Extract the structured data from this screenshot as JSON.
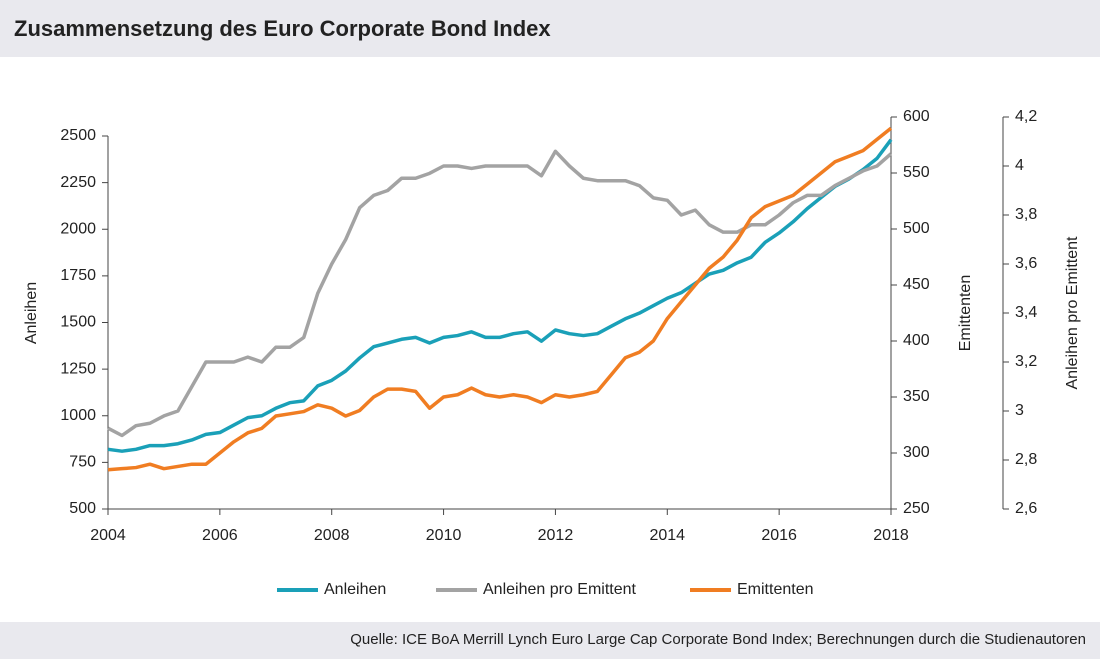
{
  "chart_data": {
    "type": "line",
    "title": "Zusammensetzung des Euro Corporate Bond Index",
    "source": "Quelle: ICE BoA Merrill Lynch Euro Large Cap Corporate Bond Index; Berechnungen durch die Studienautoren",
    "ylabel": "Anleihen",
    "y2label": "Emittenten",
    "y3label": "Anleihen pro Emittent",
    "x": [
      2004,
      2004.25,
      2004.5,
      2004.75,
      2005,
      2005.25,
      2005.5,
      2005.75,
      2006,
      2006.25,
      2006.5,
      2006.75,
      2007,
      2007.25,
      2007.5,
      2007.75,
      2008,
      2008.25,
      2008.5,
      2008.75,
      2009,
      2009.25,
      2009.5,
      2009.75,
      2010,
      2010.25,
      2010.5,
      2010.75,
      2011,
      2011.25,
      2011.5,
      2011.75,
      2012,
      2012.25,
      2012.5,
      2012.75,
      2013,
      2013.25,
      2013.5,
      2013.75,
      2014,
      2014.25,
      2014.5,
      2014.75,
      2015,
      2015.25,
      2015.5,
      2015.75,
      2016,
      2016.25,
      2016.5,
      2016.75,
      2017,
      2017.25,
      2017.5,
      2017.75,
      2018
    ],
    "xlim": [
      2004,
      2018
    ],
    "xticks": [
      2004,
      2006,
      2008,
      2010,
      2012,
      2014,
      2016,
      2018
    ],
    "ylim": [
      500,
      2500
    ],
    "yticks": [
      500,
      750,
      1000,
      1250,
      1500,
      1750,
      2000,
      2250,
      2500
    ],
    "y2lim": [
      250,
      600
    ],
    "y2ticks": [
      250,
      300,
      350,
      400,
      450,
      500,
      550,
      600
    ],
    "y3lim": [
      2.6,
      4.2
    ],
    "y3ticks": [
      {
        "value": 2.6,
        "label": "2,6"
      },
      {
        "value": 2.8,
        "label": "2,8"
      },
      3,
      {
        "value": 3.2,
        "label": "3,2"
      },
      {
        "value": 3.4,
        "label": "3,4"
      },
      {
        "value": 3.6,
        "label": "3,6"
      },
      {
        "value": 3.8,
        "label": "3,8"
      },
      4,
      {
        "value": 4.2,
        "label": "4,2"
      }
    ],
    "series": [
      {
        "name": "Anleihen",
        "color": "#1aa0b8",
        "axis": "y",
        "values": [
          820,
          810,
          820,
          840,
          840,
          850,
          870,
          900,
          910,
          950,
          990,
          1000,
          1040,
          1070,
          1080,
          1160,
          1190,
          1240,
          1310,
          1370,
          1390,
          1410,
          1420,
          1390,
          1420,
          1430,
          1450,
          1420,
          1420,
          1440,
          1450,
          1400,
          1460,
          1440,
          1430,
          1440,
          1480,
          1520,
          1550,
          1590,
          1630,
          1660,
          1710,
          1760,
          1780,
          1820,
          1850,
          1930,
          1980,
          2040,
          2110,
          2170,
          2230,
          2270,
          2320,
          2380,
          2480
        ]
      },
      {
        "name": "Anleihen pro Emittent",
        "color": "#a3a3a3",
        "axis": "y3",
        "values": [
          2.93,
          2.9,
          2.94,
          2.95,
          2.98,
          3.0,
          3.1,
          3.2,
          3.2,
          3.2,
          3.22,
          3.2,
          3.26,
          3.26,
          3.3,
          3.48,
          3.6,
          3.7,
          3.83,
          3.88,
          3.9,
          3.95,
          3.95,
          3.97,
          4.0,
          4.0,
          3.99,
          4.0,
          4.0,
          4.0,
          4.0,
          3.96,
          4.06,
          4.0,
          3.95,
          3.94,
          3.94,
          3.94,
          3.92,
          3.87,
          3.86,
          3.8,
          3.82,
          3.76,
          3.73,
          3.73,
          3.76,
          3.76,
          3.8,
          3.85,
          3.88,
          3.88,
          3.92,
          3.95,
          3.98,
          4.0,
          4.05
        ]
      },
      {
        "name": "Emittenten",
        "color": "#f07d22",
        "axis": "y2",
        "values": [
          285,
          286,
          287,
          290,
          286,
          288,
          290,
          290,
          300,
          310,
          318,
          322,
          333,
          335,
          337,
          343,
          340,
          333,
          338,
          350,
          357,
          357,
          355,
          340,
          350,
          352,
          358,
          352,
          350,
          352,
          350,
          345,
          352,
          350,
          352,
          355,
          370,
          385,
          390,
          400,
          420,
          435,
          450,
          465,
          475,
          490,
          510,
          520,
          525,
          530,
          540,
          550,
          560,
          565,
          570,
          580,
          590
        ]
      }
    ]
  }
}
